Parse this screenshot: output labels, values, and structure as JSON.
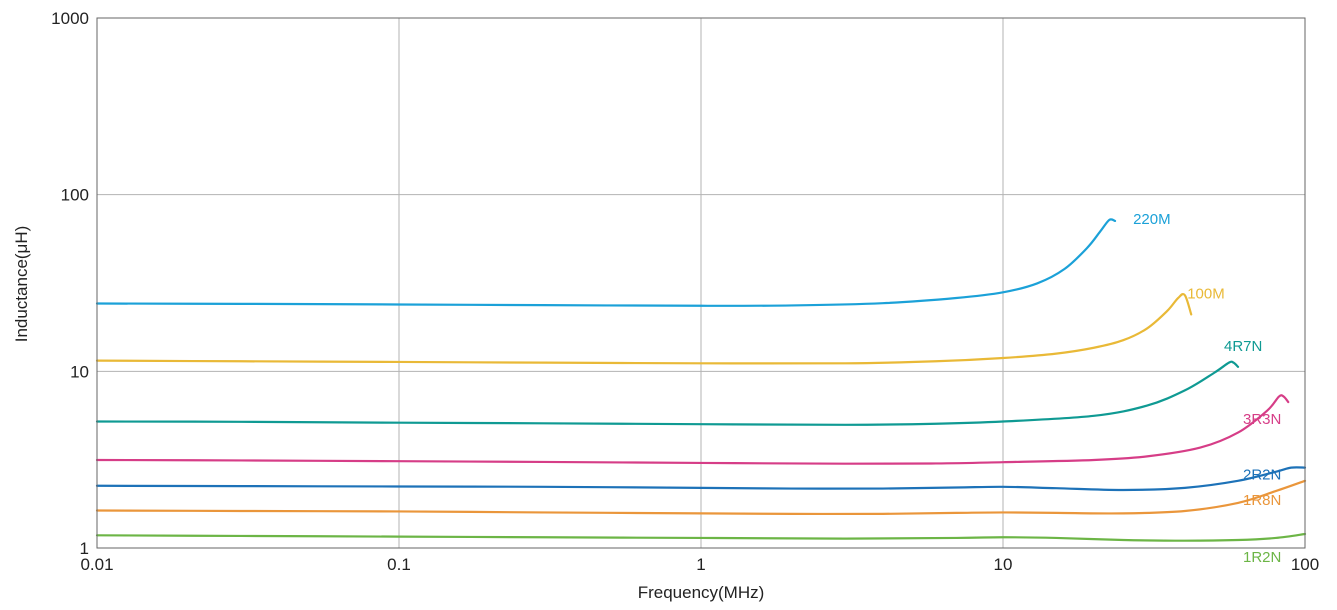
{
  "chart_data": {
    "type": "line",
    "title": "",
    "xlabel": "Frequency(MHz)",
    "ylabel": "Inductance(μH)",
    "x_scale": "log",
    "y_scale": "log",
    "xlim": [
      0.01,
      100
    ],
    "ylim": [
      1,
      1000
    ],
    "grid": true,
    "x_ticks": [
      0.01,
      0.1,
      1,
      10,
      100
    ],
    "x_tick_labels": [
      "0.01",
      "0.1",
      "1",
      "10",
      "100"
    ],
    "y_ticks": [
      1,
      10,
      100,
      1000
    ],
    "y_tick_labels": [
      "1",
      "10",
      "100",
      "1000"
    ],
    "legend": "inline labels at curve ends",
    "series": [
      {
        "name": "220M",
        "color": "#1ba1d8",
        "x": [
          0.01,
          0.03,
          0.1,
          0.3,
          1,
          2,
          4,
          7,
          10,
          13,
          16,
          19,
          21,
          22.5,
          23.5
        ],
        "y": [
          24.2,
          24.1,
          23.9,
          23.7,
          23.5,
          23.6,
          24.3,
          26,
          28,
          31.5,
          38,
          50,
          62,
          72,
          71
        ]
      },
      {
        "name": "100M",
        "color": "#e9b937",
        "x": [
          0.01,
          0.03,
          0.1,
          0.3,
          1,
          3,
          6,
          10,
          15,
          20,
          25,
          30,
          35,
          38,
          40,
          42
        ],
        "y": [
          11.5,
          11.4,
          11.3,
          11.2,
          11.1,
          11.1,
          11.4,
          11.9,
          12.6,
          13.6,
          15,
          17.5,
          22,
          26,
          27,
          21
        ]
      },
      {
        "name": "4R7N",
        "color": "#0f9a93",
        "x": [
          0.01,
          0.03,
          0.1,
          0.3,
          1,
          3,
          6,
          10,
          20,
          30,
          40,
          50,
          56,
          58,
          60
        ],
        "y": [
          5.2,
          5.18,
          5.12,
          5.08,
          5.02,
          4.98,
          5.05,
          5.2,
          5.6,
          6.4,
          7.8,
          9.8,
          11.2,
          11.2,
          10.6
        ]
      },
      {
        "name": "3R3N",
        "color": "#d63d87",
        "x": [
          0.01,
          0.03,
          0.1,
          0.3,
          1,
          3,
          6,
          10,
          20,
          30,
          45,
          60,
          75,
          82,
          85,
          88
        ],
        "y": [
          3.15,
          3.13,
          3.1,
          3.07,
          3.03,
          3.0,
          3.01,
          3.06,
          3.15,
          3.3,
          3.7,
          4.5,
          6,
          7.2,
          7.2,
          6.7
        ]
      },
      {
        "name": "2R2N",
        "color": "#1d72b8",
        "x": [
          0.01,
          0.03,
          0.1,
          0.3,
          1,
          2,
          4,
          7,
          10,
          15,
          25,
          40,
          60,
          80,
          90,
          100
        ],
        "y": [
          2.25,
          2.24,
          2.23,
          2.22,
          2.19,
          2.17,
          2.17,
          2.2,
          2.22,
          2.18,
          2.13,
          2.19,
          2.4,
          2.7,
          2.85,
          2.85
        ]
      },
      {
        "name": "1R8N",
        "color": "#ea963b",
        "x": [
          0.01,
          0.03,
          0.1,
          0.3,
          1,
          2,
          4,
          7,
          10,
          15,
          25,
          40,
          60,
          80,
          100
        ],
        "y": [
          1.63,
          1.62,
          1.61,
          1.59,
          1.57,
          1.56,
          1.56,
          1.58,
          1.59,
          1.58,
          1.57,
          1.62,
          1.8,
          2.1,
          2.4
        ]
      },
      {
        "name": "1R2N",
        "color": "#6cb546",
        "x": [
          0.01,
          0.03,
          0.1,
          0.3,
          1,
          3,
          7,
          10,
          15,
          25,
          40,
          60,
          80,
          100
        ],
        "y": [
          1.18,
          1.17,
          1.16,
          1.15,
          1.14,
          1.13,
          1.14,
          1.15,
          1.14,
          1.11,
          1.1,
          1.11,
          1.14,
          1.2
        ]
      }
    ]
  }
}
